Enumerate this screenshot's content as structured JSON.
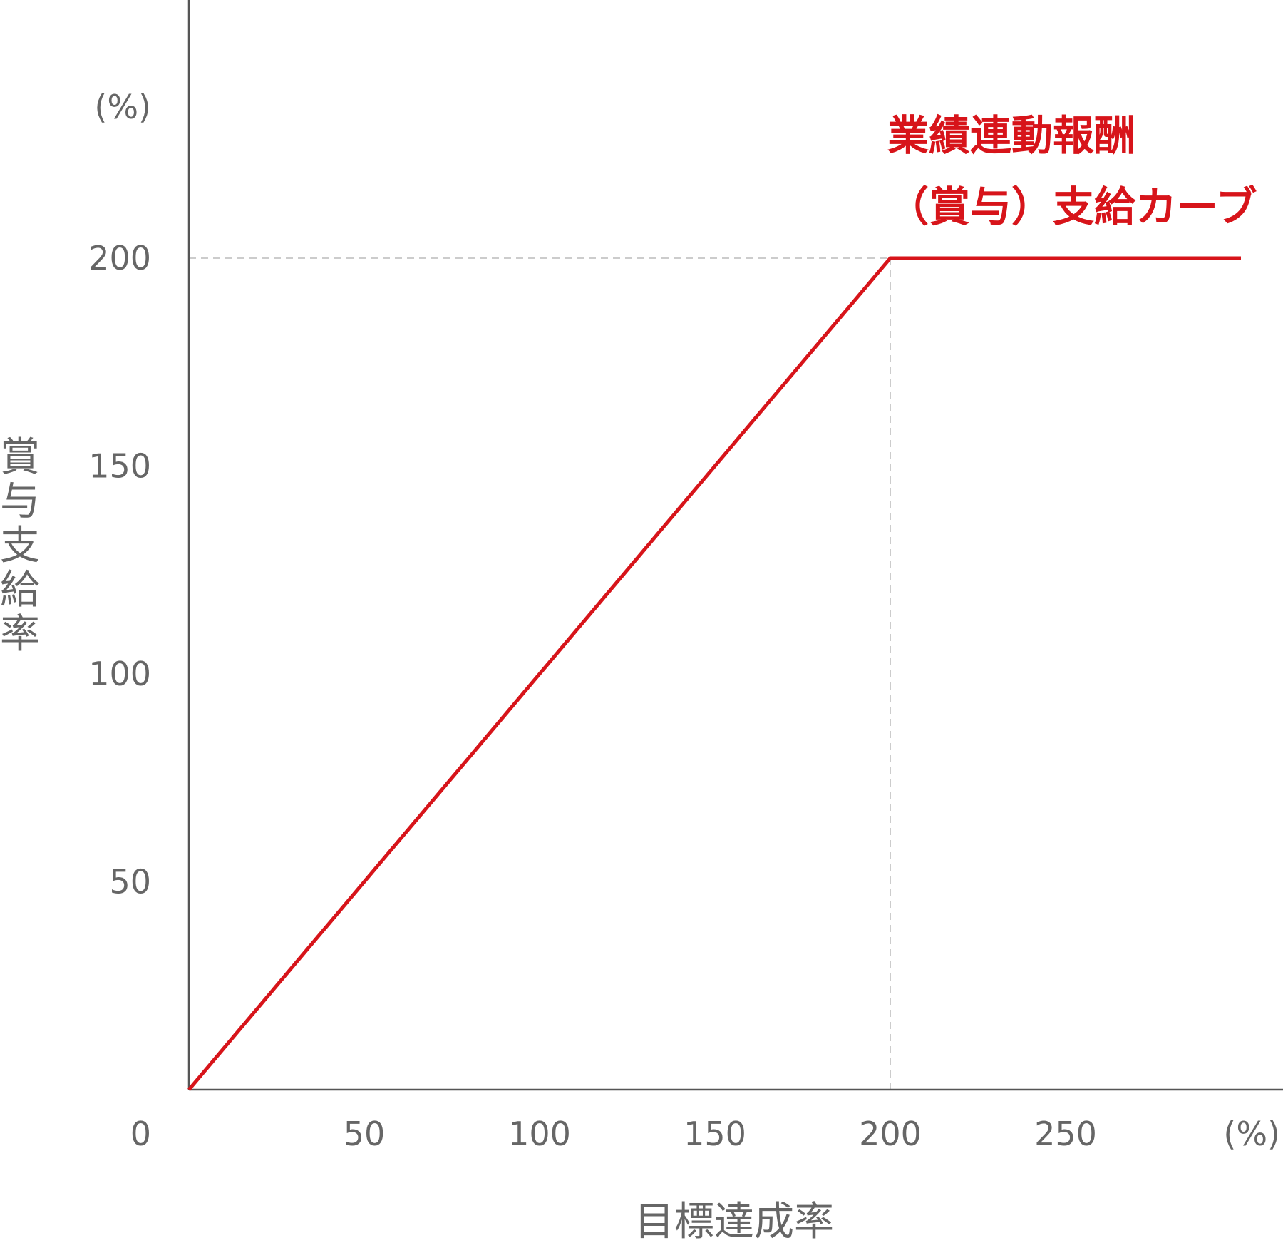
{
  "chart_data": {
    "type": "line",
    "xlabel": "目標達成率",
    "ylabel": "賞与支給率",
    "x_unit": "(%)",
    "y_unit": "(%)",
    "origin_label": "0",
    "xlim": [
      0,
      300
    ],
    "ylim": [
      0,
      200
    ],
    "x_ticks": [
      50,
      100,
      150,
      200,
      250
    ],
    "y_ticks": [
      50,
      100,
      150,
      200
    ],
    "grid": false,
    "reference_lines": {
      "x": 200,
      "y": 200
    },
    "series": [
      {
        "name_lines": [
          "業績連動報酬",
          "（賞与）支給カーブ"
        ],
        "color": "#d7141a",
        "points": [
          [
            0,
            0
          ],
          [
            200,
            200
          ],
          [
            300,
            200
          ]
        ]
      }
    ]
  },
  "colors": {
    "axis": "#555555",
    "reference": "#cccccc",
    "text": "#666666"
  }
}
